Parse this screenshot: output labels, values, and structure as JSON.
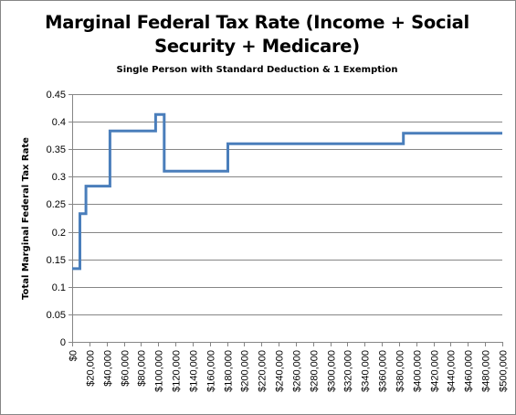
{
  "chart_data": {
    "type": "line",
    "title_lines": [
      "Marginal Federal Tax Rate (Income + Social",
      "Security + Medicare)"
    ],
    "subtitle": "Single Person with Standard Deduction & 1 Exemption",
    "xlabel": "",
    "ylabel": "Total Marginal  Federal Tax Rate",
    "ylim": [
      0,
      0.45
    ],
    "xlim": [
      0,
      500000
    ],
    "y_ticks": [
      "0",
      "0.05",
      "0.1",
      "0.15",
      "0.2",
      "0.25",
      "0.3",
      "0.35",
      "0.4",
      "0.45"
    ],
    "x_ticks": [
      "$0",
      "$20,000",
      "$40,000",
      "$60,000",
      "$80,000",
      "$100,000",
      "$120,000",
      "$140,000",
      "$160,000",
      "$180,000",
      "$200,000",
      "$220,000",
      "$240,000",
      "$260,000",
      "$280,000",
      "$300,000",
      "$320,000",
      "$340,000",
      "$360,000",
      "$380,000",
      "$400,000",
      "$420,000",
      "$440,000",
      "$460,000",
      "$480,000",
      "$500,000"
    ],
    "grid": "horizontal",
    "line_color": "#4a7ebb",
    "series": [
      {
        "x": [
          0,
          9000,
          9000,
          16000,
          16000,
          44000,
          44000,
          97000,
          97000,
          107000,
          107000,
          181000,
          181000,
          385000,
          385000,
          500000
        ],
        "y": [
          0.133,
          0.133,
          0.233,
          0.233,
          0.283,
          0.283,
          0.383,
          0.383,
          0.413,
          0.413,
          0.31,
          0.31,
          0.36,
          0.36,
          0.379,
          0.379
        ]
      }
    ]
  }
}
